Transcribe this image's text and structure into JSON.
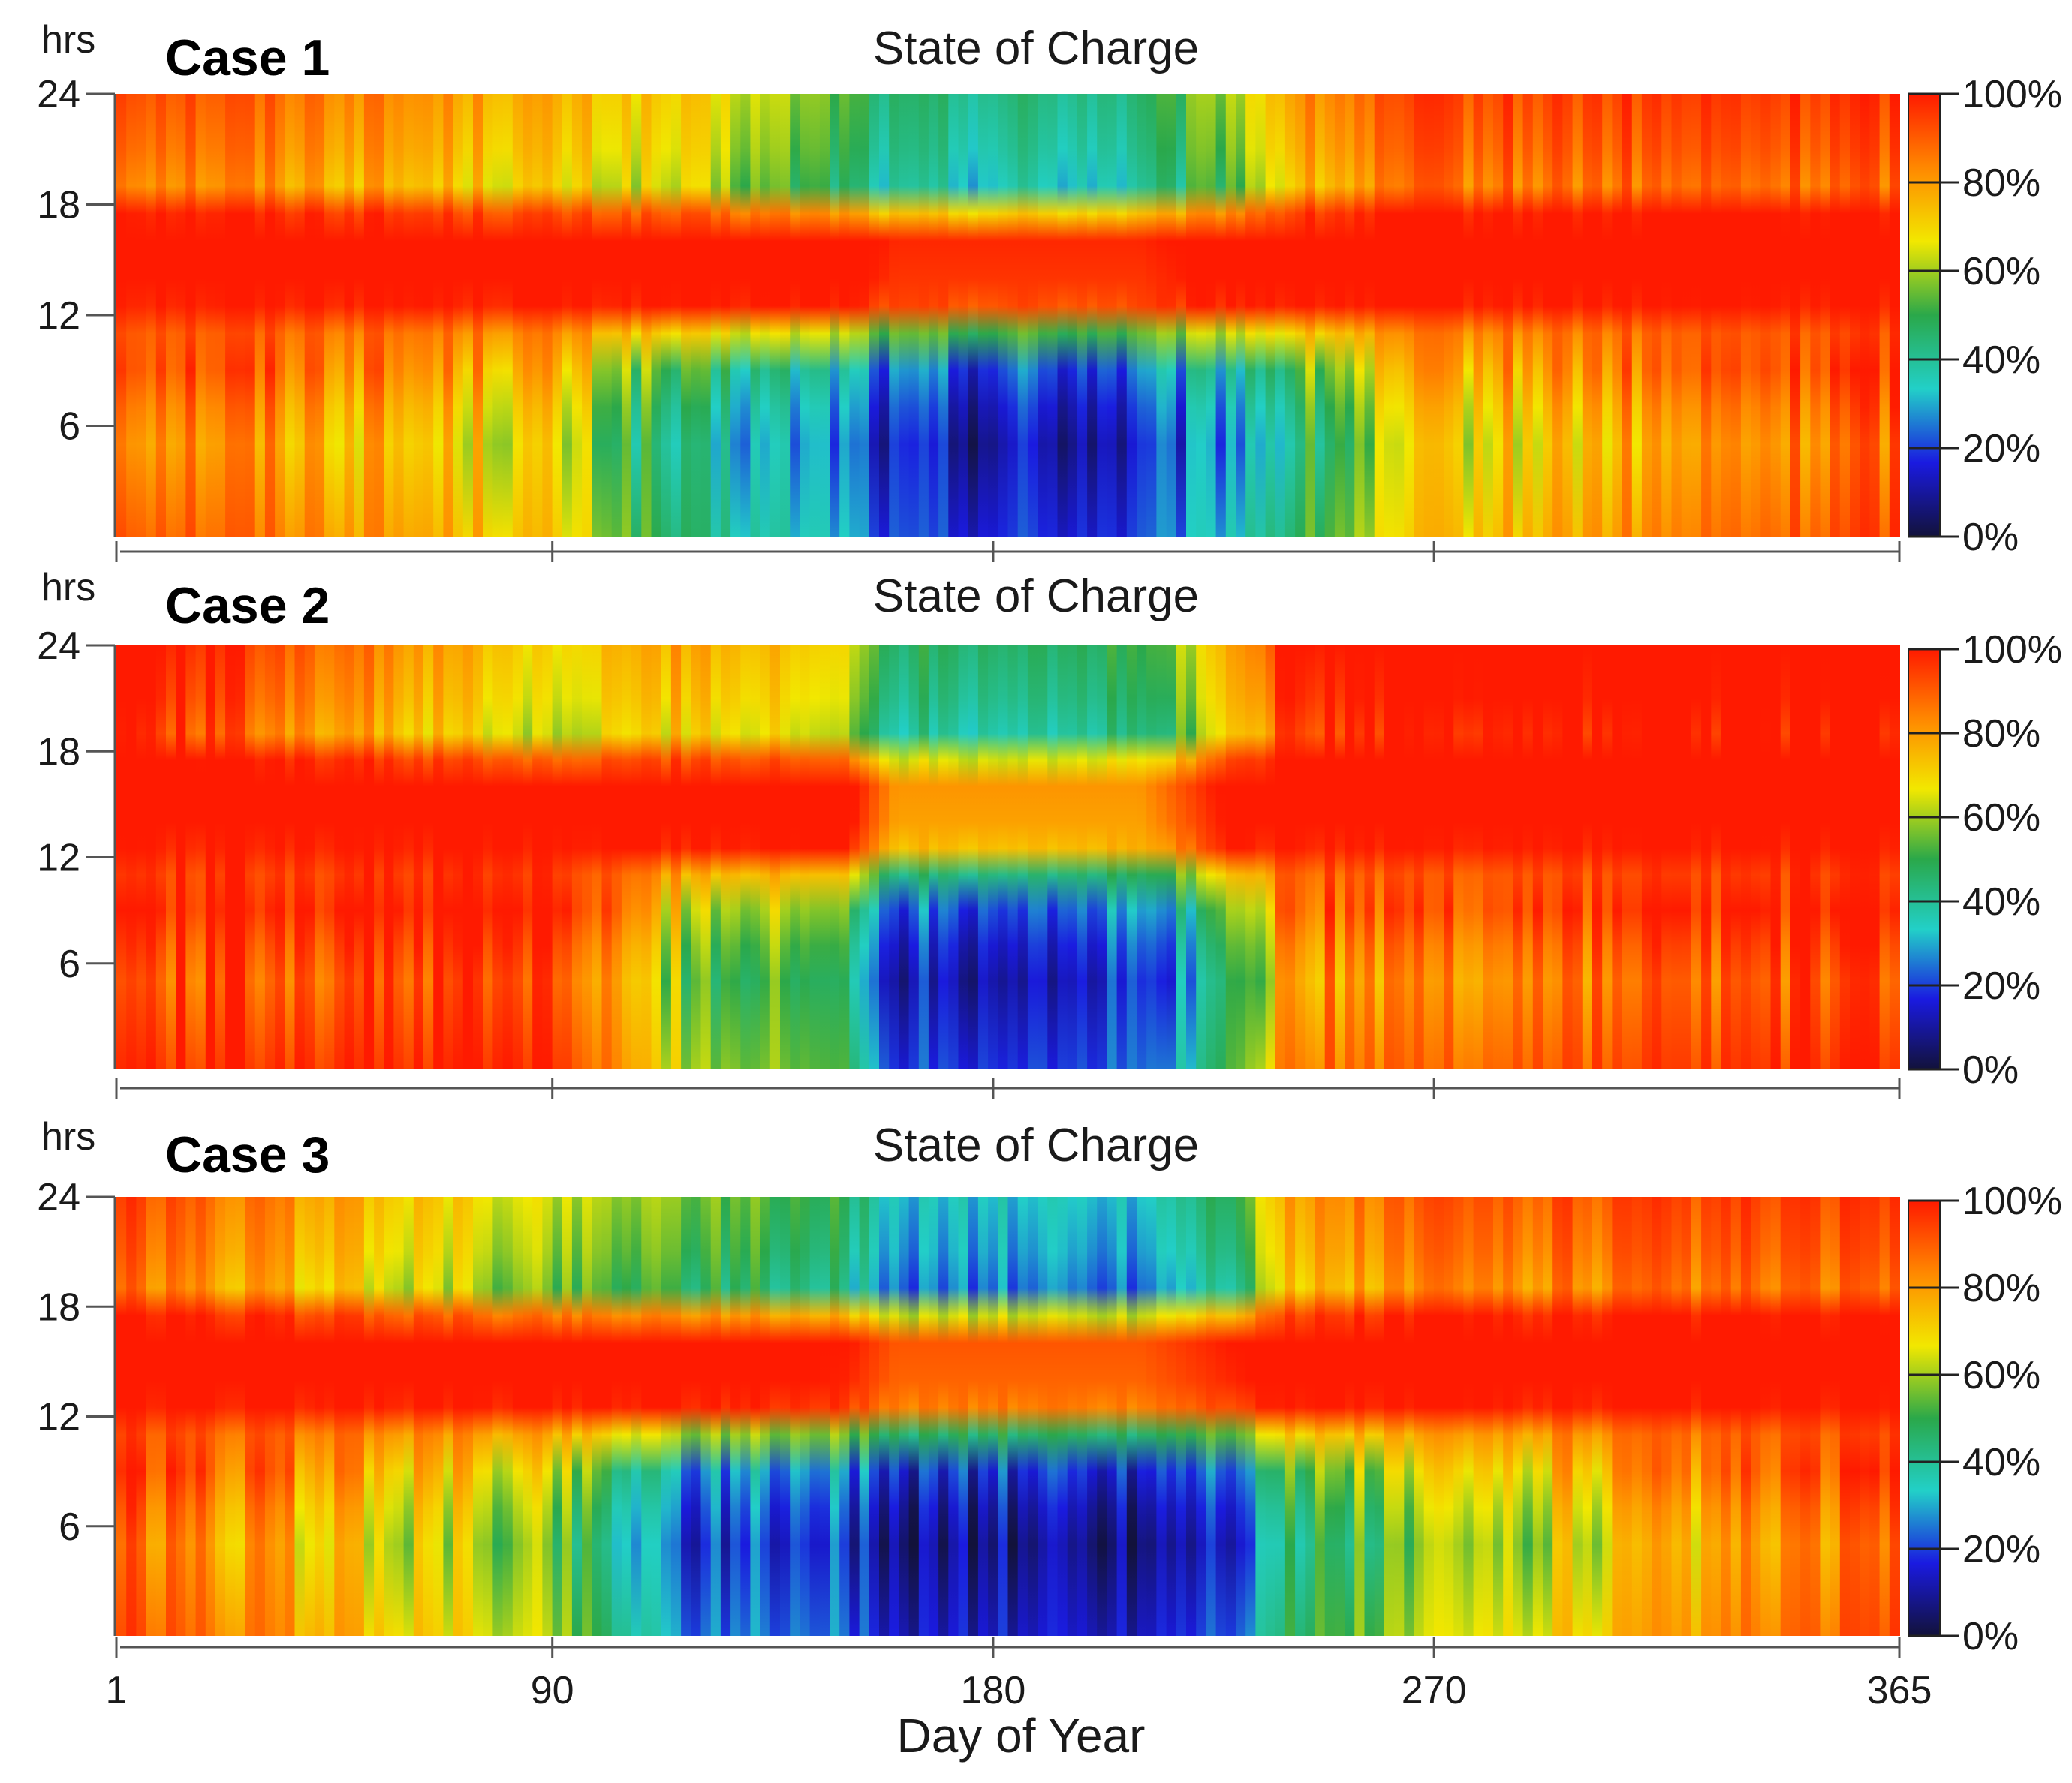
{
  "figure": {
    "xlabel": "Day of Year",
    "x_ticks": [
      "1",
      "90",
      "180",
      "270",
      "365"
    ]
  },
  "chart_data": [
    {
      "type": "heatmap",
      "case_label": "Case 1",
      "title": "State of Charge",
      "xlabel": "Day of Year",
      "ylabel": "hrs",
      "x_range": [
        1,
        365
      ],
      "y_range": [
        0,
        24
      ],
      "y_ticks": [
        6,
        12,
        18,
        24
      ],
      "colorbar": {
        "label": "State of Charge",
        "ticks": [
          "0%",
          "20%",
          "40%",
          "60%",
          "80%",
          "100%"
        ],
        "stops": [
          "#12123a",
          "#1a1ae0",
          "#22d0c8",
          "#2aa84a",
          "#f2e800",
          "#ff8800",
          "#ff1a00"
        ]
      },
      "seasonal_profile": {
        "days": [
          1,
          90,
          118,
          150,
          160,
          210,
          230,
          240,
          268,
          365
        ],
        "night_min_soc_pct": [
          88,
          65,
          35,
          25,
          12,
          12,
          30,
          40,
          65,
          88
        ],
        "evening_soc_pct": [
          88,
          68,
          62,
          45,
          35,
          35,
          55,
          72,
          85,
          88
        ],
        "midday_soc_pct": [
          100,
          100,
          100,
          100,
          92,
          92,
          100,
          100,
          100,
          100
        ]
      }
    },
    {
      "type": "heatmap",
      "case_label": "Case 2",
      "title": "State of Charge",
      "xlabel": "Day of Year",
      "ylabel": "hrs",
      "x_range": [
        1,
        365
      ],
      "y_range": [
        0,
        24
      ],
      "y_ticks": [
        6,
        12,
        18,
        24
      ],
      "colorbar": {
        "label": "State of Charge",
        "ticks": [
          "0%",
          "20%",
          "40%",
          "60%",
          "80%",
          "100%"
        ],
        "stops": [
          "#12123a",
          "#1a1ae0",
          "#22d0c8",
          "#2aa84a",
          "#f2e800",
          "#ff8800",
          "#ff1a00"
        ]
      },
      "seasonal_profile": {
        "days": [
          1,
          90,
          118,
          150,
          160,
          210,
          230,
          240,
          268,
          365
        ],
        "night_min_soc_pct": [
          92,
          92,
          55,
          45,
          15,
          15,
          45,
          80,
          82,
          92
        ],
        "evening_soc_pct": [
          100,
          60,
          72,
          60,
          40,
          40,
          70,
          95,
          100,
          100
        ],
        "midday_soc_pct": [
          100,
          100,
          100,
          100,
          75,
          75,
          100,
          100,
          100,
          100
        ]
      }
    },
    {
      "type": "heatmap",
      "case_label": "Case 3",
      "title": "State of Charge",
      "xlabel": "Day of Year",
      "ylabel": "hrs",
      "x_range": [
        1,
        365
      ],
      "y_range": [
        0,
        24
      ],
      "y_ticks": [
        6,
        12,
        18,
        24
      ],
      "colorbar": {
        "label": "State of Charge",
        "ticks": [
          "0%",
          "20%",
          "40%",
          "60%",
          "80%",
          "100%"
        ],
        "stops": [
          "#12123a",
          "#1a1ae0",
          "#22d0c8",
          "#2aa84a",
          "#f2e800",
          "#ff8800",
          "#ff1a00"
        ]
      },
      "seasonal_profile": {
        "days": [
          1,
          90,
          118,
          150,
          160,
          210,
          230,
          240,
          268,
          365
        ],
        "night_min_soc_pct": [
          86,
          55,
          20,
          18,
          8,
          8,
          20,
          40,
          55,
          86
        ],
        "evening_soc_pct": [
          86,
          55,
          50,
          40,
          25,
          25,
          45,
          70,
          82,
          86
        ],
        "midday_soc_pct": [
          100,
          100,
          100,
          95,
          85,
          85,
          95,
          100,
          100,
          100
        ]
      }
    }
  ]
}
